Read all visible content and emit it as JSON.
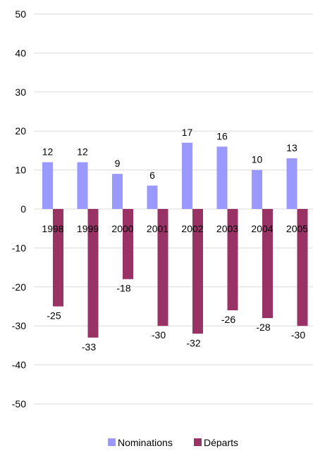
{
  "chart_data": {
    "type": "bar",
    "categories": [
      "1998",
      "1999",
      "2000",
      "2001",
      "2002",
      "2003",
      "2004",
      "2005"
    ],
    "series": [
      {
        "name": "Nominations",
        "values": [
          12,
          12,
          9,
          6,
          17,
          16,
          10,
          13
        ],
        "color": "#9999ff"
      },
      {
        "name": "Départs",
        "values": [
          -25,
          -33,
          -18,
          -30,
          -32,
          -26,
          -28,
          -30
        ],
        "color": "#993366"
      }
    ],
    "ylim": [
      -50,
      50
    ],
    "yticks": [
      50,
      40,
      30,
      20,
      10,
      0,
      -10,
      -20,
      -30,
      -40,
      -50
    ],
    "grid": true,
    "legend_position": "bottom"
  }
}
